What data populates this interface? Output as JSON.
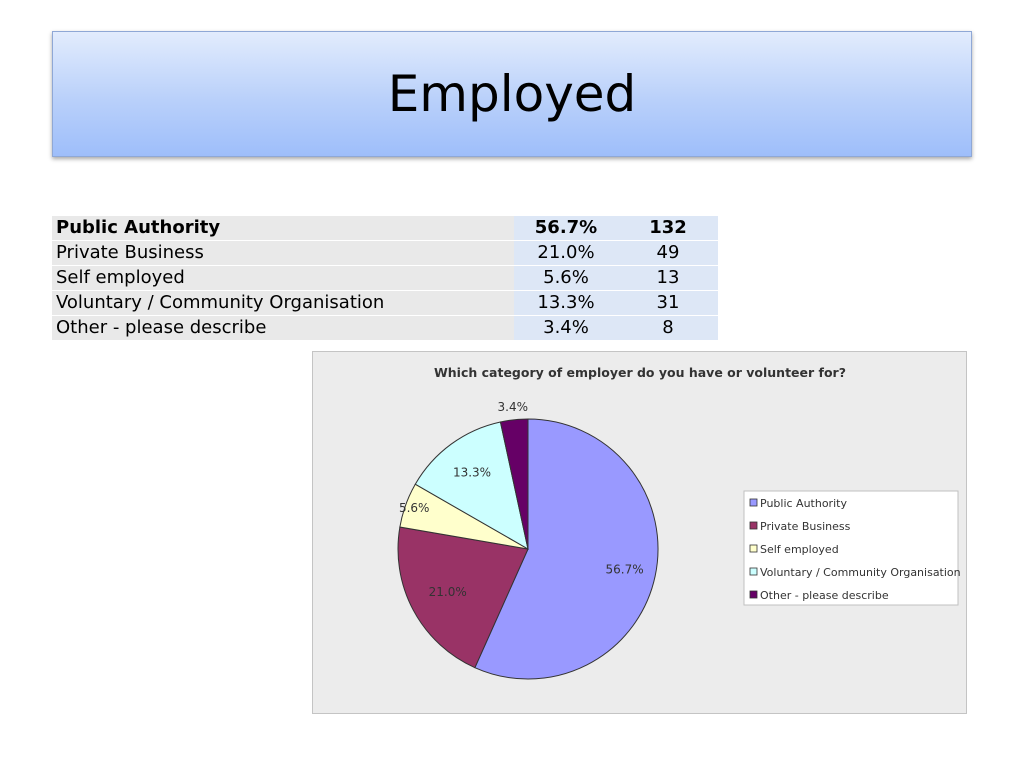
{
  "slide": {
    "title": "Employed"
  },
  "table": {
    "rows": [
      {
        "label": "Public Authority",
        "percent": "56.7%",
        "count": "132"
      },
      {
        "label": "Private Business",
        "percent": "21.0%",
        "count": "49"
      },
      {
        "label": "Self employed",
        "percent": "5.6%",
        "count": "13"
      },
      {
        "label": "Voluntary / Community Organisation",
        "percent": "13.3%",
        "count": "31"
      },
      {
        "label": "Other - please describe",
        "percent": "3.4%",
        "count": "8"
      }
    ]
  },
  "chart_data": {
    "type": "pie",
    "title": "Which category of employer do you have or volunteer for?",
    "categories": [
      "Public Authority",
      "Private Business",
      "Self employed",
      "Voluntary / Community Organisation",
      "Other - please describe"
    ],
    "values": [
      56.7,
      21.0,
      5.6,
      13.3,
      3.4
    ],
    "data_labels": [
      "56.7%",
      "21.0%",
      "5.6%",
      "13.3%",
      "3.4%"
    ],
    "colors": [
      "#9999ff",
      "#993366",
      "#ffffcc",
      "#ccffff",
      "#660066"
    ],
    "legend_position": "right"
  }
}
